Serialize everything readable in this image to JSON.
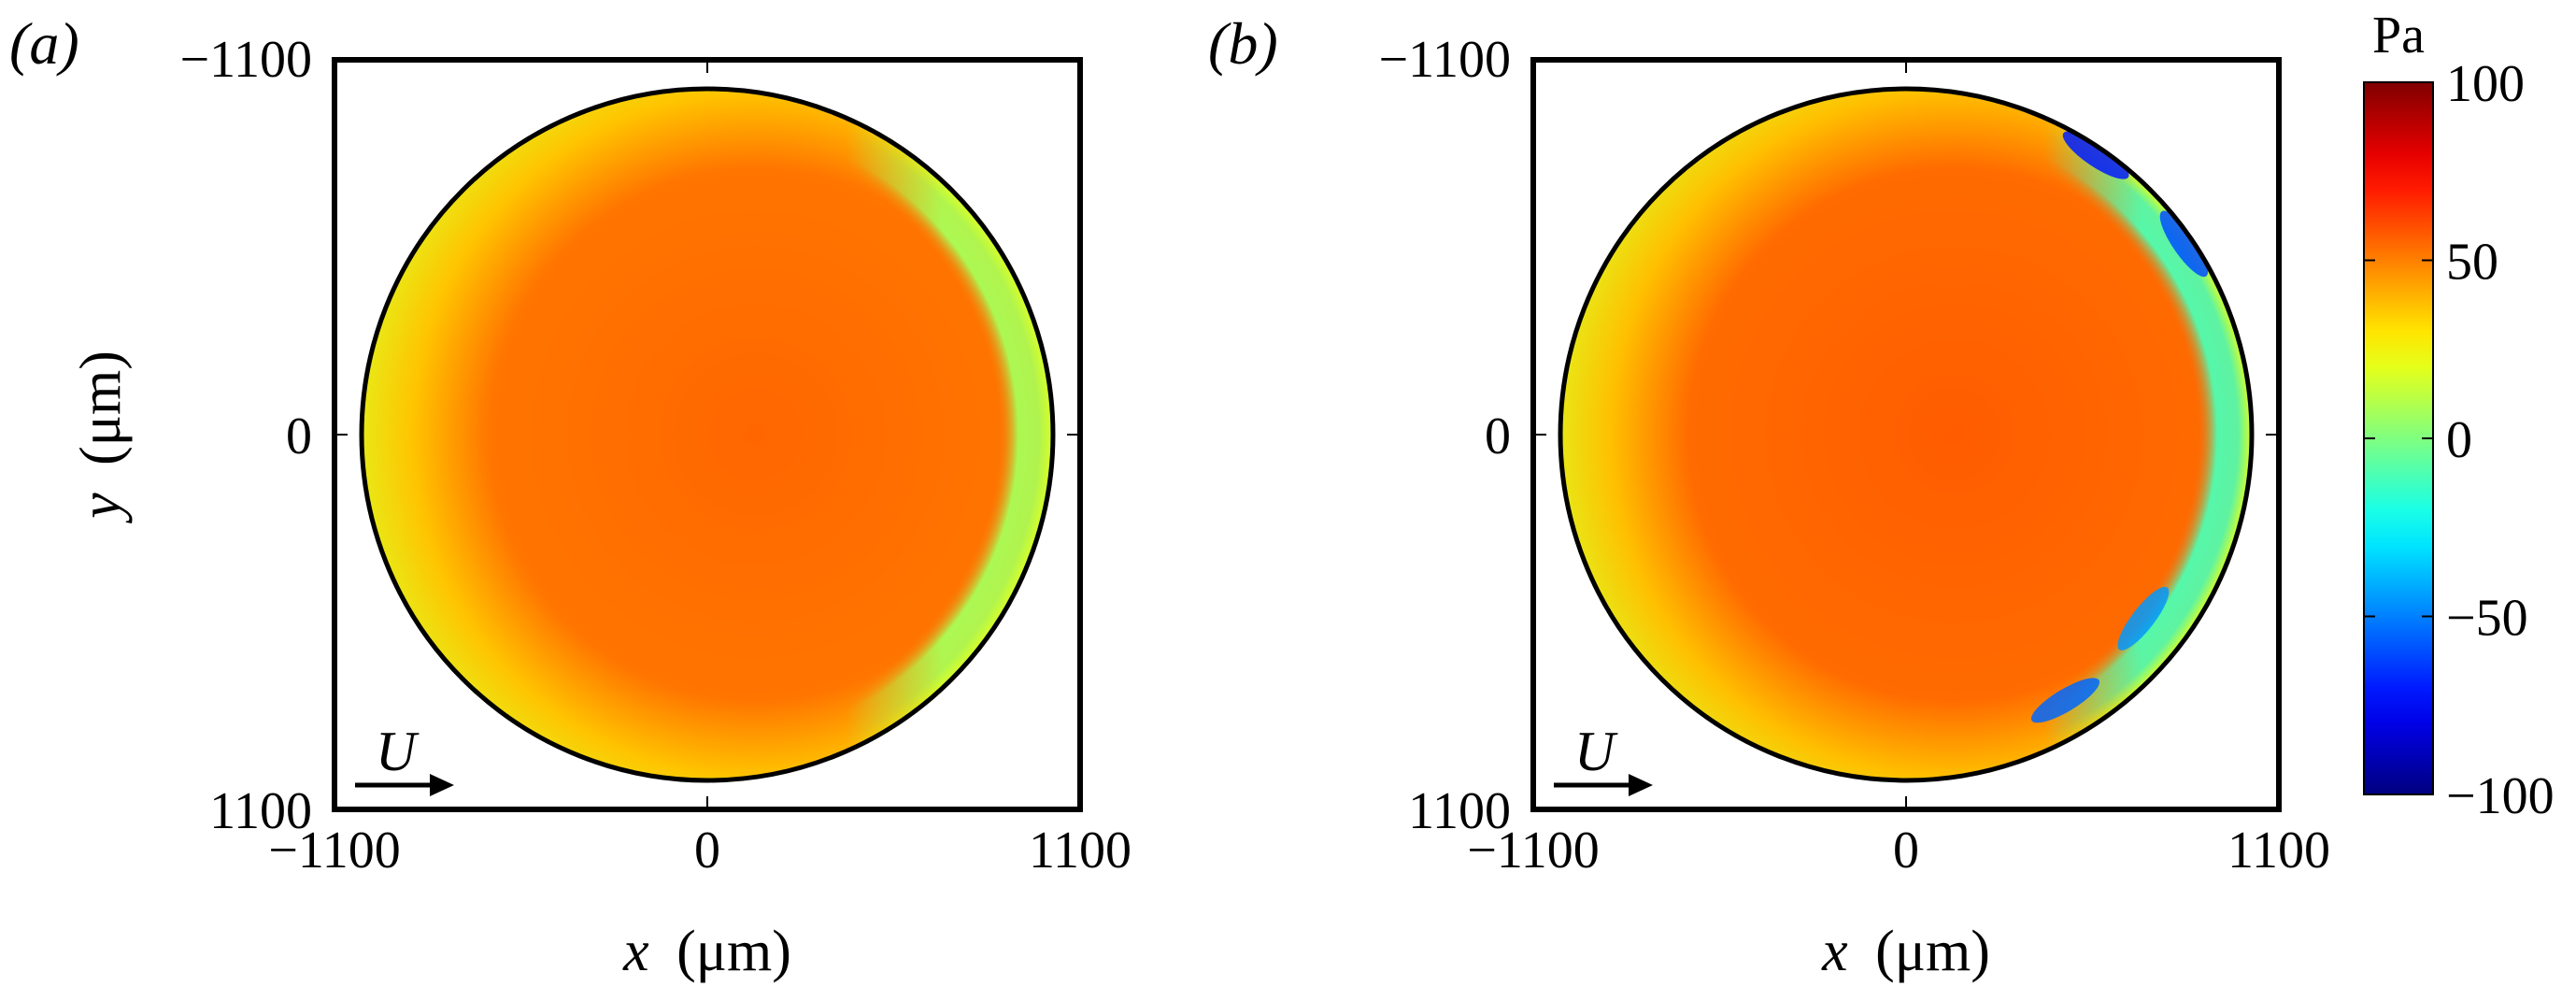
{
  "chart_data": [
    {
      "type": "heatmap",
      "panel_label": "(a)",
      "xlabel": {
        "symbol": "x",
        "unit": "(μm)"
      },
      "ylabel": {
        "symbol": "y",
        "unit": "(μm)"
      },
      "xlim": [
        -1100,
        1100
      ],
      "ylim": [
        1100,
        -1100
      ],
      "x_ticks": [
        -1100,
        0,
        1100
      ],
      "y_ticks": [
        -1100,
        0,
        1100
      ],
      "x_tick_labels": [
        "−1100",
        "0",
        "1100"
      ],
      "y_tick_labels": [
        "−1100",
        "0",
        "1100"
      ],
      "contact_radius": 1020,
      "flow_annotation": "U",
      "field": {
        "center_value": 55,
        "edge_value": 18,
        "crescent_value": 8,
        "negative_dips": []
      }
    },
    {
      "type": "heatmap",
      "panel_label": "(b)",
      "xlabel": {
        "symbol": "x",
        "unit": "(μm)"
      },
      "xlim": [
        -1100,
        1100
      ],
      "ylim": [
        1100,
        -1100
      ],
      "x_ticks": [
        -1100,
        0,
        1100
      ],
      "y_ticks": [
        -1100,
        0,
        1100
      ],
      "x_tick_labels": [
        "−1100",
        "0",
        "1100"
      ],
      "y_tick_labels": [
        "−1100",
        "0",
        "1100"
      ],
      "contact_radius": 1020,
      "flow_annotation": "U",
      "field": {
        "center_value": 57,
        "edge_value": 18,
        "crescent_value": -10,
        "negative_dips": [
          {
            "x": 470,
            "y": -780,
            "value": -55
          },
          {
            "x": 700,
            "y": -540,
            "value": -45
          },
          {
            "x": 820,
            "y": 560,
            "value": -60
          },
          {
            "x": 560,
            "y": 820,
            "value": -70
          }
        ]
      }
    }
  ],
  "colorbar": {
    "unit": "Pa",
    "range": [
      -100,
      100
    ],
    "ticks": [
      100,
      50,
      0,
      -50,
      -100
    ],
    "tick_labels": [
      "100",
      "50",
      "0",
      "−50",
      "−100"
    ],
    "colormap": "jet"
  }
}
